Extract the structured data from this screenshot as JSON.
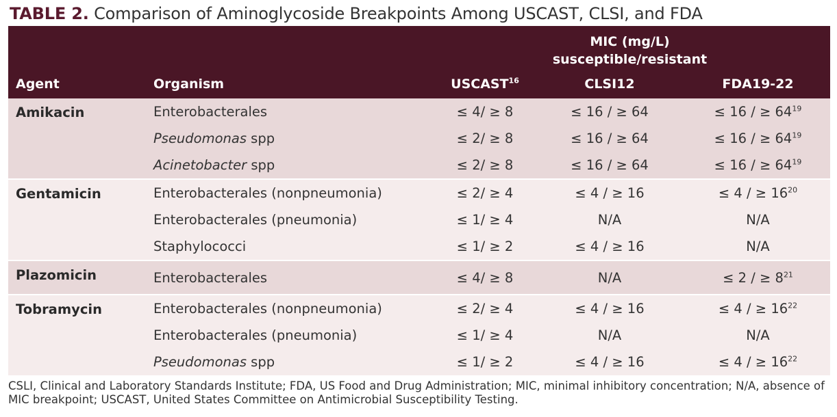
{
  "title": {
    "label": "TABLE 2.",
    "text": "Comparison of Aminoglycoside Breakpoints Among USCAST, CLSI, and FDA"
  },
  "header": {
    "mic_line1": "MIC (mg/L)",
    "mic_line2": "susceptible/resistant",
    "agent": "Agent",
    "organism": "Organism",
    "uscast": "USCAST",
    "uscast_ref": "16",
    "clsi": "CLSI12",
    "fda": "FDA19-22"
  },
  "groups": [
    {
      "agent": "Amikacin",
      "shade": "dark",
      "rows": [
        {
          "org": "Enterobacterales",
          "org_italic": "",
          "uscast": "≤ 4/ ≥ 8",
          "clsi": "≤ 16 / ≥ 64",
          "fda": "≤ 16 / ≥ 64",
          "fda_ref": "19"
        },
        {
          "org": " spp",
          "org_italic": "Pseudomonas",
          "uscast": "≤ 2/ ≥ 8",
          "clsi": "≤ 16 / ≥ 64",
          "fda": "≤ 16 / ≥ 64",
          "fda_ref": "19"
        },
        {
          "org": " spp",
          "org_italic": "Acinetobacter",
          "uscast": "≤ 2/ ≥ 8",
          "clsi": "≤ 16 / ≥ 64",
          "fda": "≤ 16 / ≥ 64",
          "fda_ref": "19"
        }
      ]
    },
    {
      "agent": "Gentamicin",
      "shade": "light",
      "rows": [
        {
          "org": "Enterobacterales (nonpneumonia)",
          "org_italic": "",
          "uscast": "≤ 2/ ≥ 4",
          "clsi": "≤ 4 / ≥ 16",
          "fda": "≤ 4 / ≥ 16",
          "fda_ref": "20"
        },
        {
          "org": "Enterobacterales (pneumonia)",
          "org_italic": "",
          "uscast": "≤ 1/ ≥ 4",
          "clsi": "N/A",
          "fda": "N/A",
          "fda_ref": ""
        },
        {
          "org": "Staphylococci",
          "org_italic": "",
          "uscast": "≤ 1/ ≥ 2",
          "clsi": "≤ 4 / ≥ 16",
          "fda": "N/A",
          "fda_ref": ""
        }
      ]
    },
    {
      "agent": "Plazomicin",
      "shade": "dark",
      "rows": [
        {
          "org": "Enterobacterales",
          "org_italic": "",
          "uscast": "≤ 4/ ≥ 8",
          "clsi": "N/A",
          "fda": "≤ 2 / ≥ 8",
          "fda_ref": "21"
        }
      ]
    },
    {
      "agent": "Tobramycin",
      "shade": "light",
      "rows": [
        {
          "org": "Enterobacterales (nonpneumonia)",
          "org_italic": "",
          "uscast": "≤ 2/ ≥ 4",
          "clsi": "≤ 4 / ≥ 16",
          "fda": "≤ 4 / ≥ 16",
          "fda_ref": "22"
        },
        {
          "org": "Enterobacterales (pneumonia)",
          "org_italic": "",
          "uscast": "≤ 1/ ≥ 4",
          "clsi": "N/A",
          "fda": "N/A",
          "fda_ref": ""
        },
        {
          "org": " spp",
          "org_italic": "Pseudomonas",
          "uscast": "≤ 1/ ≥ 2",
          "clsi": "≤ 4 / ≥ 16",
          "fda": "≤ 4 / ≥ 16",
          "fda_ref": "22"
        }
      ]
    }
  ],
  "footnote": "CSLI, Clinical and Laboratory Standards Institute; FDA, US Food and Drug Administration; MIC, minimal inhibitory concentration; N/A, absence of MIC breakpoint; USCAST, United States Committee on Antimicrobial Susceptibility Testing.",
  "colors": {
    "header_bg": "#4a1626",
    "title_label": "#5a1a2e",
    "row_dark": "#e8d8d9",
    "row_light": "#f5ecec"
  }
}
